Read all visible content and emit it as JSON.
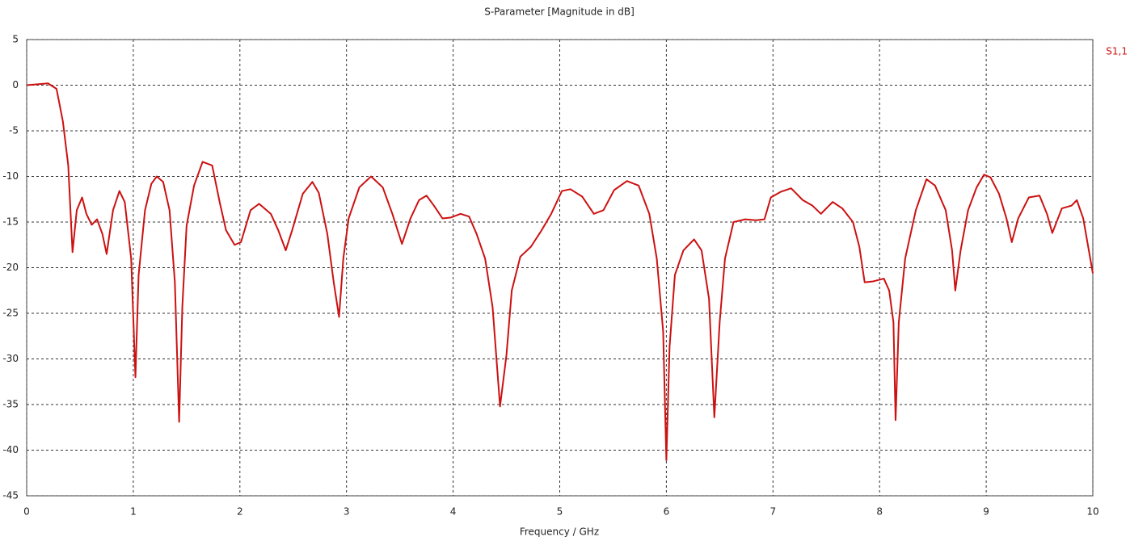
{
  "chart_data": {
    "type": "line",
    "title": "S-Parameter [Magnitude in dB]",
    "x_label": "Frequency / GHz",
    "x": [
      0,
      0.2,
      0.28,
      0.34,
      0.39,
      0.43,
      0.47,
      0.52,
      0.56,
      0.61,
      0.66,
      0.71,
      0.75,
      0.81,
      0.87,
      0.92,
      0.98,
      1.02,
      1.05,
      1.11,
      1.17,
      1.22,
      1.28,
      1.34,
      1.39,
      1.43,
      1.46,
      1.5,
      1.57,
      1.65,
      1.74,
      1.81,
      1.87,
      1.95,
      2.01,
      2.1,
      2.18,
      2.29,
      2.36,
      2.43,
      2.49,
      2.59,
      2.68,
      2.74,
      2.82,
      2.88,
      2.93,
      2.97,
      3.02,
      3.12,
      3.23,
      3.34,
      3.43,
      3.52,
      3.6,
      3.68,
      3.75,
      3.82,
      3.9,
      3.98,
      4.07,
      4.15,
      4.22,
      4.3,
      4.37,
      4.44,
      4.5,
      4.55,
      4.63,
      4.73,
      4.83,
      4.92,
      5.02,
      5.1,
      5.21,
      5.32,
      5.41,
      5.51,
      5.63,
      5.74,
      5.84,
      5.91,
      5.97,
      6.0,
      6.03,
      6.08,
      6.16,
      6.26,
      6.33,
      6.4,
      6.45,
      6.5,
      6.55,
      6.63,
      6.74,
      6.84,
      6.92,
      6.98,
      7.07,
      7.17,
      7.28,
      7.37,
      7.45,
      7.56,
      7.65,
      7.75,
      7.81,
      7.86,
      7.94,
      8.04,
      8.09,
      8.13,
      8.15,
      8.18,
      8.24,
      8.34,
      8.44,
      8.52,
      8.62,
      8.68,
      8.71,
      8.76,
      8.83,
      8.91,
      8.98,
      9.04,
      9.12,
      9.19,
      9.24,
      9.3,
      9.4,
      9.5,
      9.57,
      9.62,
      9.71,
      9.8,
      9.85,
      9.91,
      10.0
    ],
    "series": [
      {
        "name": "S1,1",
        "color": "#cc1111",
        "values": [
          0,
          0.2,
          -0.4,
          -4,
          -8.8,
          -18.3,
          -13.7,
          -12.3,
          -14.1,
          -15.3,
          -14.7,
          -16.3,
          -18.5,
          -13.7,
          -11.6,
          -12.8,
          -19,
          -32,
          -20.8,
          -13.7,
          -10.8,
          -10,
          -10.6,
          -13.7,
          -21.6,
          -36.9,
          -24.3,
          -15.4,
          -11,
          -8.4,
          -8.8,
          -12.8,
          -15.9,
          -17.5,
          -17.2,
          -13.7,
          -13,
          -14.1,
          -15.9,
          -18.1,
          -15.9,
          -11.9,
          -10.6,
          -11.8,
          -16.3,
          -21.6,
          -25.4,
          -19,
          -14.6,
          -11.2,
          -10,
          -11.2,
          -14.1,
          -17.4,
          -14.6,
          -12.6,
          -12.1,
          -13.2,
          -14.6,
          -14.5,
          -14.1,
          -14.4,
          -16.3,
          -19,
          -24.3,
          -35.2,
          -29.6,
          -22.5,
          -18.8,
          -17.7,
          -15.9,
          -14.1,
          -11.6,
          -11.4,
          -12.2,
          -14.1,
          -13.7,
          -11.5,
          -10.5,
          -11,
          -14.1,
          -19,
          -27,
          -41.1,
          -28.7,
          -20.8,
          -18.1,
          -16.9,
          -18.1,
          -23.4,
          -36.4,
          -26,
          -19,
          -15,
          -14.7,
          -14.8,
          -14.7,
          -12.3,
          -11.7,
          -11.3,
          -12.6,
          -13.2,
          -14.1,
          -12.8,
          -13.5,
          -15,
          -17.7,
          -21.6,
          -21.5,
          -21.2,
          -22.5,
          -26,
          -36.7,
          -26,
          -19,
          -13.7,
          -10.3,
          -11,
          -13.7,
          -18.1,
          -22.5,
          -18.1,
          -13.7,
          -11.2,
          -9.8,
          -10.1,
          -11.9,
          -14.6,
          -17.2,
          -14.6,
          -12.3,
          -12.1,
          -14.1,
          -16.2,
          -13.5,
          -13.2,
          -12.6,
          -14.6,
          -20.6
        ]
      }
    ],
    "xlim": [
      0,
      10
    ],
    "xticks": [
      0,
      1,
      2,
      3,
      4,
      5,
      6,
      7,
      8,
      9,
      10
    ],
    "ylim": [
      -45,
      5
    ],
    "yticks": [
      5,
      0,
      -5,
      -10,
      -15,
      -20,
      -25,
      -30,
      -35,
      -40,
      -45
    ],
    "grid": true,
    "legend": "top-right"
  }
}
